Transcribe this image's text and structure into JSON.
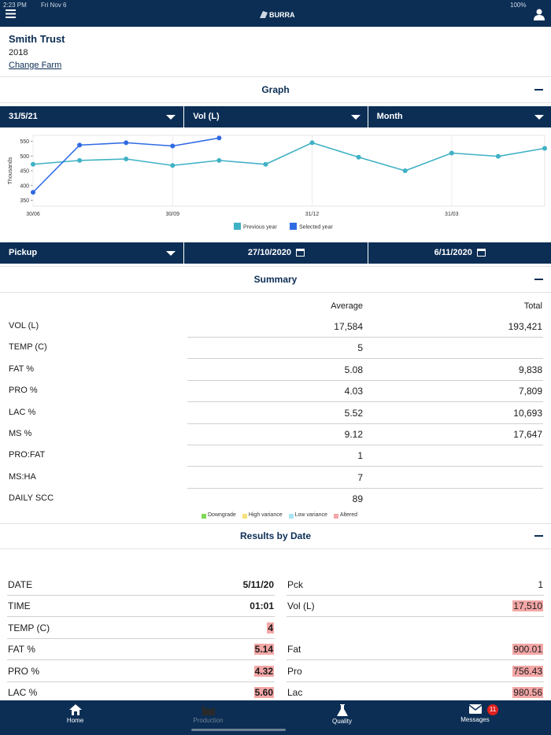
{
  "status_bar": {
    "time": "2:23 PM",
    "date": "Fri Nov 6",
    "battery": "100%"
  },
  "header": {
    "logo": "BURRA"
  },
  "farm": {
    "name": "Smith Trust",
    "year": "2018",
    "link": "Change Farm"
  },
  "graph": {
    "title": "Graph",
    "filters": [
      "31/5/21",
      "Vol (L)",
      "Month"
    ]
  },
  "chart_data": {
    "type": "line",
    "y_label": "Thousands",
    "categories": [
      "30/06",
      null,
      null,
      "30/09",
      null,
      null,
      "31/12",
      null,
      null,
      "31/03",
      null,
      null
    ],
    "series": [
      {
        "name": "Previous year",
        "color": "#3fb1c5",
        "values": [
          472,
          485,
          490,
          468,
          485,
          472,
          545,
          496,
          450,
          510,
          499,
          526
        ]
      },
      {
        "name": "Selected year",
        "color": "#2f6ae4",
        "values": [
          377,
          537,
          545,
          534,
          561,
          null,
          null,
          null,
          null,
          null,
          null,
          null
        ]
      }
    ],
    "ylim": [
      330,
      570
    ],
    "yticks": [
      350,
      400,
      450,
      500,
      550
    ],
    "legend": "bottom"
  },
  "pickup": {
    "filters": [
      "Pickup",
      "27/10/2020",
      "6/11/2020"
    ]
  },
  "summary": {
    "title": "Summary",
    "columns": [
      "Average",
      "Total"
    ],
    "rows": [
      {
        "label": "VOL (L)",
        "average": "17,584",
        "total": "193,421"
      },
      {
        "label": "TEMP (C)",
        "average": "5"
      },
      {
        "label": "FAT  %",
        "average": "5.08",
        "total": "9,838"
      },
      {
        "label": "PRO  %",
        "average": "4.03",
        "total": "7,809"
      },
      {
        "label": "LAC  %",
        "average": "5.52",
        "total": "10,693"
      },
      {
        "label": "MS  %",
        "average": "9.12",
        "total": "17,647"
      },
      {
        "label": "PRO:FAT",
        "average": "1"
      },
      {
        "label": "MS:HA",
        "average": "7"
      },
      {
        "label": "DAILY SCC",
        "average": "89"
      }
    ],
    "legend": [
      {
        "name": "Downgrade",
        "color": "#7ed957"
      },
      {
        "name": "High variance",
        "color": "#f6e27a"
      },
      {
        "name": "Low variance",
        "color": "#a8e4f0"
      },
      {
        "name": "Altered",
        "color": "#f4a7a7"
      }
    ]
  },
  "results": {
    "title": "Results by Date",
    "rows": [
      {
        "left": {
          "label": "DATE",
          "value": "5/11/20",
          "altered": false
        },
        "right": {
          "label": "Pck",
          "value": "1",
          "altered": false
        }
      },
      {
        "left": {
          "label": "TIME",
          "value": "01:01",
          "altered": false
        },
        "right": {
          "label": "Vol (L)",
          "value": "17,510",
          "altered": true
        }
      },
      {
        "left": {
          "label": "TEMP (C)",
          "value": "4",
          "altered": true
        }
      },
      {
        "left": {
          "label": "FAT  %",
          "value": "5.14",
          "altered": true
        },
        "right": {
          "label": "Fat",
          "value": "900.01",
          "altered": true
        }
      },
      {
        "left": {
          "label": "PRO  %",
          "value": "4.32",
          "altered": true
        },
        "right": {
          "label": "Pro",
          "value": "756.43",
          "altered": true
        }
      },
      {
        "left": {
          "label": "LAC  %",
          "value": "5.60",
          "altered": true
        },
        "right": {
          "label": "Lac",
          "value": "980.56",
          "altered": true
        }
      }
    ]
  },
  "tabs": [
    {
      "label": "Home"
    },
    {
      "label": "Production"
    },
    {
      "label": "Quality"
    },
    {
      "label": "Messages",
      "badge": "11"
    }
  ]
}
